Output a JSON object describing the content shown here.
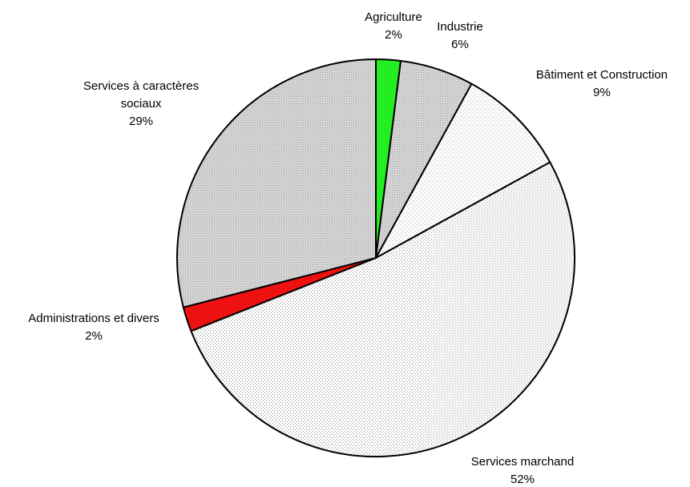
{
  "chart_data": {
    "type": "pie",
    "start_angle_deg": 0,
    "direction": "clockwise",
    "slices": [
      {
        "label": "Agriculture",
        "value": 2,
        "value_label": "2%",
        "color": "#22ee22",
        "pattern": "solid"
      },
      {
        "label": "Industrie",
        "value": 6,
        "value_label": "6%",
        "color": "#cccccc",
        "pattern": "dots-dense"
      },
      {
        "label": "Bâtiment et Construction",
        "value": 9,
        "value_label": "9%",
        "color": "#f2f2f2",
        "pattern": "dots-sparse"
      },
      {
        "label": "Services marchand",
        "value": 52,
        "value_label": "52%",
        "color": "#f2f2f2",
        "pattern": "dots-medium"
      },
      {
        "label": "Administrations et divers",
        "value": 2,
        "value_label": "2%",
        "color": "#ee1111",
        "pattern": "solid"
      },
      {
        "label": "Services à caractères sociaux",
        "value": 29,
        "value_label": "29%",
        "color": "#d6d6d6",
        "pattern": "dots-dense"
      }
    ],
    "label_lines": [
      [
        "Agriculture"
      ],
      [
        "Industrie"
      ],
      [
        "Bâtiment et Construction"
      ],
      [
        "Services marchand"
      ],
      [
        "Administrations et divers"
      ],
      [
        "Services à caractères",
        "sociaux"
      ]
    ]
  }
}
